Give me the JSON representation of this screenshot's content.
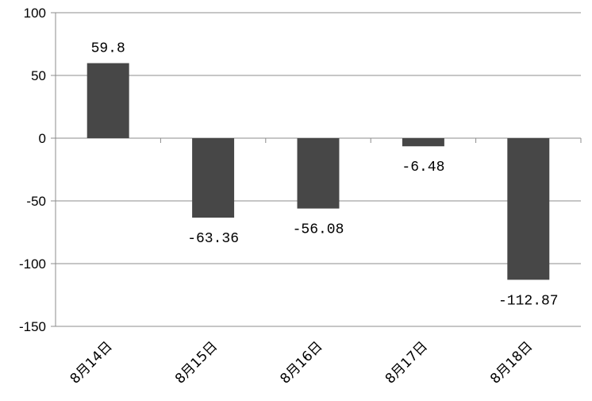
{
  "chart_data": {
    "type": "bar",
    "categories": [
      "8月14日",
      "8月15日",
      "8月16日",
      "8月17日",
      "8月18日"
    ],
    "values": [
      59.8,
      -63.36,
      -56.08,
      -6.48,
      -112.87
    ],
    "data_labels": [
      "59.8",
      "-63.36",
      "-56.08",
      "-6.48",
      "-112.87"
    ],
    "ylim": [
      -150,
      100
    ],
    "yticks": [
      100,
      50,
      0,
      -50,
      -100,
      -150
    ],
    "grid": true,
    "legend": "none",
    "bar_color": "#474747",
    "title": "",
    "xlabel": "",
    "ylabel": ""
  }
}
